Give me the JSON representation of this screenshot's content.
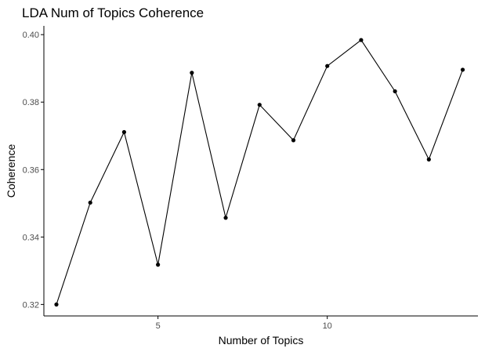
{
  "chart_data": {
    "type": "line",
    "title": "LDA Num of Topics Coherence",
    "xlabel": "Number of Topics",
    "ylabel": "Coherence",
    "x": [
      2,
      3,
      4,
      5,
      6,
      7,
      8,
      9,
      10,
      11,
      12,
      13,
      14
    ],
    "series": [
      {
        "values": [
          0.32,
          0.3502,
          0.3711,
          0.3318,
          0.3887,
          0.3457,
          0.3792,
          0.3687,
          0.3907,
          0.3984,
          0.3832,
          0.363,
          0.3896
        ]
      }
    ],
    "xlim": [
      1.63,
      14.45
    ],
    "ylim": [
      0.3166,
      0.4026
    ],
    "xticks": [
      5,
      10
    ],
    "yticks": [
      0.32,
      0.34,
      0.36,
      0.38,
      0.4
    ],
    "xtick_labels": [
      "5",
      "10"
    ],
    "ytick_labels": [
      "0.32",
      "0.34",
      "0.36",
      "0.38",
      "0.40"
    ],
    "grid": false,
    "legend": "none",
    "colors": {
      "line": "#000000",
      "point": "#000000",
      "axis": "#000000",
      "tick_text": "#4d4d4d"
    }
  }
}
